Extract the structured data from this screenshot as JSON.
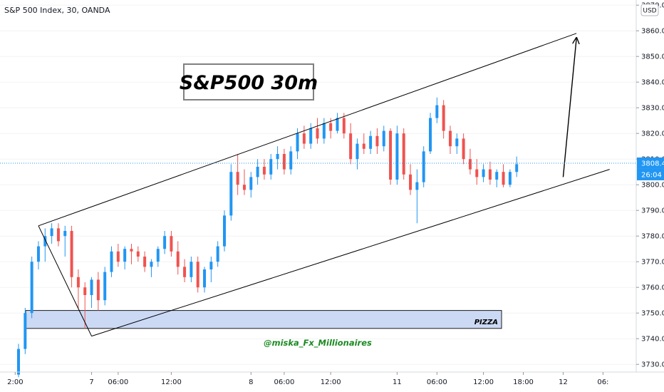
{
  "symbol_title": "S&P 500 Index, 30, OANDA",
  "currency_label": "USD",
  "annotation_title": "S&P500 30m",
  "zone_label": "PIZZA",
  "watermark": "@miska_Fx_Millionaires",
  "last_price_label": "3808.4",
  "countdown_label": "26:04",
  "colors": {
    "up": "#2196f3",
    "down": "#ef5350",
    "zone_fill": "#ccd9f5",
    "price_line": "#2196f3",
    "watermark": "#1b8a22"
  },
  "chart_data": {
    "type": "candlestick",
    "title": "S&P 500 Index, 30, OANDA",
    "ylim": [
      3727,
      3872
    ],
    "xlim": [
      -1,
      88
    ],
    "y_ticks": [
      {
        "value": 3730,
        "label": "3730.0"
      },
      {
        "value": 3740,
        "label": "3740.0"
      },
      {
        "value": 3750,
        "label": "3750.0"
      },
      {
        "value": 3760,
        "label": "3760.0"
      },
      {
        "value": 3770,
        "label": "3770.0"
      },
      {
        "value": 3780,
        "label": "3780.0"
      },
      {
        "value": 3790,
        "label": "3790.0"
      },
      {
        "value": 3800,
        "label": "3800.0"
      },
      {
        "value": 3810,
        "label": "3810.0"
      },
      {
        "value": 3820,
        "label": "3820.0"
      },
      {
        "value": 3830,
        "label": "3830.0"
      },
      {
        "value": 3840,
        "label": "3840.0"
      },
      {
        "value": 3850,
        "label": "3850.0"
      },
      {
        "value": 3860,
        "label": "3860.0"
      },
      {
        "value": 3870,
        "label": "3870.0"
      }
    ],
    "x_ticks": [
      {
        "index": -0.5,
        "label": "2:00"
      },
      {
        "index": 11,
        "label": "7"
      },
      {
        "index": 15,
        "label": "06:00"
      },
      {
        "index": 23,
        "label": "12:00"
      },
      {
        "index": 35,
        "label": "8"
      },
      {
        "index": 40,
        "label": "06:00"
      },
      {
        "index": 47,
        "label": "12:00"
      },
      {
        "index": 57,
        "label": "11"
      },
      {
        "index": 63,
        "label": "06:00"
      },
      {
        "index": 70,
        "label": "12:00"
      },
      {
        "index": 76,
        "label": "18:00"
      },
      {
        "index": 82,
        "label": "12"
      },
      {
        "index": 88,
        "label": "06:"
      }
    ],
    "candles": [
      [
        3726,
        3738,
        3725,
        3736
      ],
      [
        3736,
        3752,
        3734,
        3750
      ],
      [
        3750,
        3772,
        3748,
        3770
      ],
      [
        3770,
        3778,
        3767,
        3776
      ],
      [
        3776,
        3783,
        3770,
        3780
      ],
      [
        3780,
        3785,
        3777,
        3783
      ],
      [
        3783,
        3785,
        3776,
        3778
      ],
      [
        3780,
        3784,
        3772,
        3782
      ],
      [
        3782,
        3784,
        3760,
        3764
      ],
      [
        3764,
        3767,
        3752,
        3760
      ],
      [
        3760,
        3762,
        3744,
        3757
      ],
      [
        3757,
        3764,
        3752,
        3763
      ],
      [
        3763,
        3766,
        3751,
        3755
      ],
      [
        3755,
        3768,
        3753,
        3766
      ],
      [
        3766,
        3776,
        3764,
        3774
      ],
      [
        3774,
        3777,
        3768,
        3770
      ],
      [
        3770,
        3776,
        3767,
        3775
      ],
      [
        3775,
        3777,
        3769,
        3774
      ],
      [
        3774,
        3776,
        3770,
        3772
      ],
      [
        3772,
        3774,
        3766,
        3768
      ],
      [
        3768,
        3771,
        3764,
        3770
      ],
      [
        3770,
        3776,
        3768,
        3775
      ],
      [
        3775,
        3782,
        3773,
        3780
      ],
      [
        3780,
        3782,
        3772,
        3774
      ],
      [
        3774,
        3778,
        3765,
        3768
      ],
      [
        3768,
        3771,
        3762,
        3764
      ],
      [
        3764,
        3772,
        3762,
        3770
      ],
      [
        3770,
        3772,
        3758,
        3760
      ],
      [
        3760,
        3768,
        3758,
        3767
      ],
      [
        3767,
        3772,
        3762,
        3770
      ],
      [
        3770,
        3778,
        3768,
        3776
      ],
      [
        3776,
        3790,
        3774,
        3788
      ],
      [
        3788,
        3808,
        3786,
        3805
      ],
      [
        3805,
        3812,
        3796,
        3800
      ],
      [
        3800,
        3806,
        3796,
        3798
      ],
      [
        3798,
        3805,
        3795,
        3803
      ],
      [
        3803,
        3810,
        3800,
        3807
      ],
      [
        3807,
        3810,
        3802,
        3804
      ],
      [
        3804,
        3812,
        3802,
        3810
      ],
      [
        3810,
        3815,
        3806,
        3812
      ],
      [
        3812,
        3814,
        3804,
        3806
      ],
      [
        3806,
        3815,
        3804,
        3813
      ],
      [
        3813,
        3822,
        3810,
        3820
      ],
      [
        3820,
        3823,
        3814,
        3816
      ],
      [
        3816,
        3824,
        3814,
        3822
      ],
      [
        3822,
        3826,
        3816,
        3818
      ],
      [
        3818,
        3826,
        3816,
        3824
      ],
      [
        3824,
        3826,
        3818,
        3821
      ],
      [
        3821,
        3828,
        3820,
        3826
      ],
      [
        3826,
        3828,
        3818,
        3820
      ],
      [
        3820,
        3824,
        3808,
        3810
      ],
      [
        3810,
        3818,
        3806,
        3816
      ],
      [
        3816,
        3820,
        3812,
        3814
      ],
      [
        3814,
        3821,
        3812,
        3819
      ],
      [
        3819,
        3822,
        3812,
        3815
      ],
      [
        3815,
        3823,
        3813,
        3821
      ],
      [
        3821,
        3822,
        3800,
        3802
      ],
      [
        3802,
        3823,
        3800,
        3820
      ],
      [
        3820,
        3822,
        3802,
        3804
      ],
      [
        3804,
        3808,
        3796,
        3798
      ],
      [
        3798,
        3806,
        3785,
        3801
      ],
      [
        3801,
        3815,
        3799,
        3813
      ],
      [
        3813,
        3828,
        3812,
        3826
      ],
      [
        3826,
        3834,
        3824,
        3831
      ],
      [
        3831,
        3833,
        3818,
        3821
      ],
      [
        3821,
        3823,
        3812,
        3815
      ],
      [
        3815,
        3820,
        3812,
        3818
      ],
      [
        3818,
        3820,
        3808,
        3810
      ],
      [
        3810,
        3814,
        3804,
        3806
      ],
      [
        3806,
        3810,
        3800,
        3803
      ],
      [
        3803,
        3808,
        3801,
        3806
      ],
      [
        3806,
        3809,
        3800,
        3802
      ],
      [
        3802,
        3806,
        3799,
        3805
      ],
      [
        3805,
        3808,
        3799,
        3800
      ],
      [
        3800,
        3806,
        3799,
        3805
      ],
      [
        3805,
        3811,
        3803,
        3808
      ]
    ],
    "channel": {
      "upper": [
        [
          3,
          3784
        ],
        [
          84,
          3859
        ]
      ],
      "lower": [
        [
          11,
          3741
        ],
        [
          89,
          3806
        ]
      ],
      "left_edge": [
        [
          3,
          3784
        ],
        [
          11,
          3741
        ]
      ]
    },
    "projection_arrow": [
      [
        82,
        3803
      ],
      [
        84,
        3857
      ]
    ],
    "demand_zone": {
      "x_start": 0,
      "x_end": 87,
      "y_low": 3744,
      "y_high": 3751
    },
    "last_price": 3808.4
  }
}
